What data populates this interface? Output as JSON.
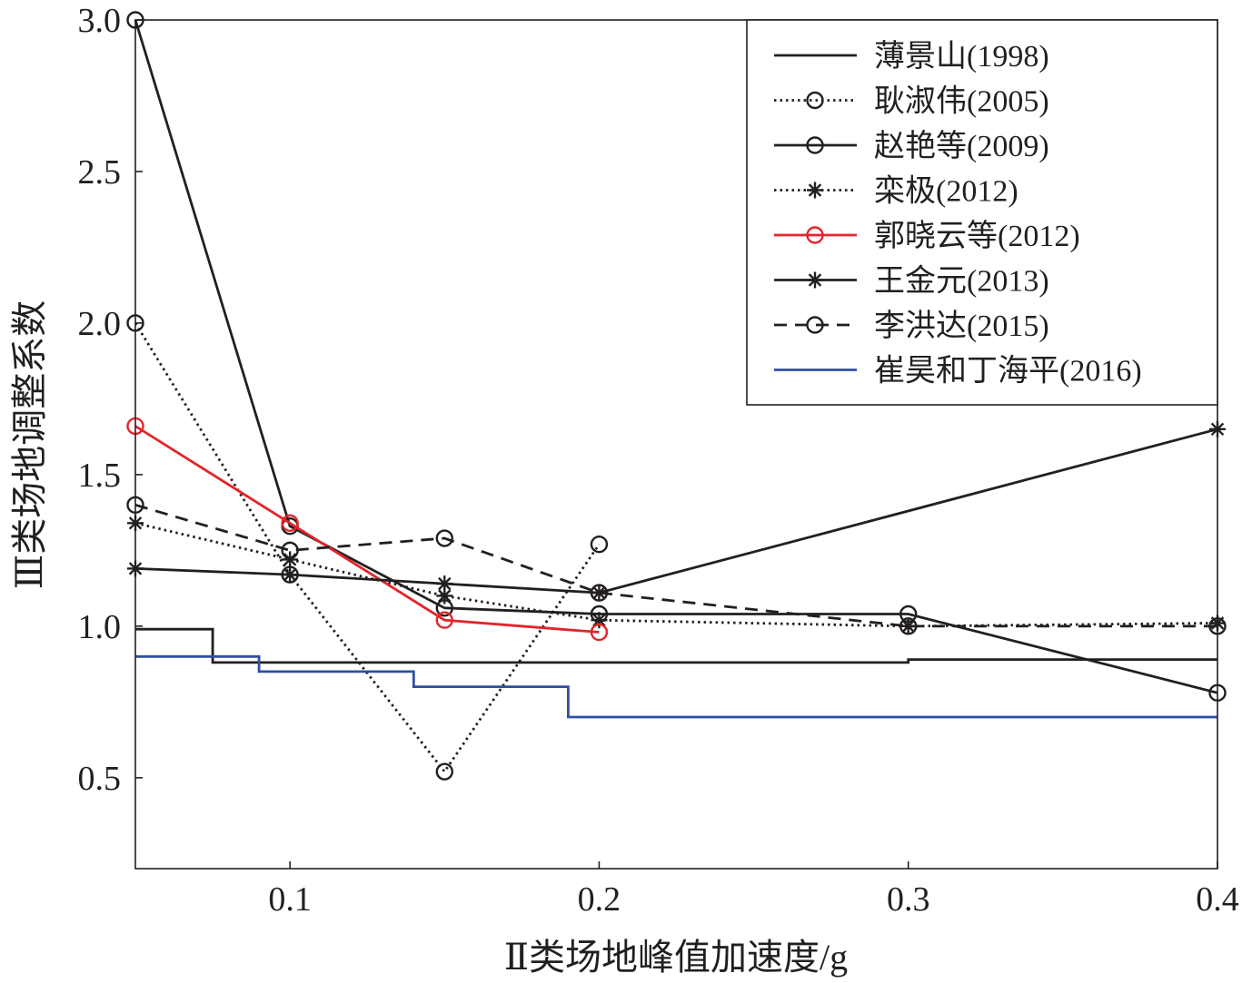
{
  "chart_data": {
    "type": "line",
    "xlabel": "Ⅱ类场地峰值加速度/g",
    "ylabel": "Ⅲ类场地调整系数",
    "xlim": [
      0.05,
      0.4
    ],
    "ylim": [
      0.2,
      3.0
    ],
    "xticks": [
      0.1,
      0.2,
      0.3,
      0.4
    ],
    "xtick_labels": [
      "0.1",
      "0.2",
      "0.3",
      "0.4"
    ],
    "yticks": [
      0.5,
      1.0,
      1.5,
      2.0,
      2.5,
      3.0
    ],
    "ytick_labels": [
      "0.5",
      "1.0",
      "1.5",
      "2.0",
      "2.5",
      "3.0"
    ],
    "grid": false,
    "legend_position": "top-right",
    "series": [
      {
        "name": "薄景山(1998)",
        "color": "#231f20",
        "dash": "solid",
        "marker": "none",
        "step": true,
        "x": [
          0.05,
          0.075,
          0.075,
          0.3,
          0.3,
          0.4
        ],
        "y": [
          0.99,
          0.99,
          0.88,
          0.88,
          0.89,
          0.89
        ]
      },
      {
        "name": "耿淑伟(2005)",
        "color": "#231f20",
        "dash": "dotted",
        "marker": "circle",
        "x": [
          0.05,
          0.1,
          0.15,
          0.2
        ],
        "y": [
          2.0,
          1.17,
          0.52,
          1.27
        ]
      },
      {
        "name": "赵艳等(2009)",
        "color": "#231f20",
        "dash": "solid",
        "marker": "circle",
        "x": [
          0.05,
          0.1,
          0.15,
          0.2,
          0.3,
          0.4
        ],
        "y": [
          3.0,
          1.33,
          1.06,
          1.04,
          1.04,
          0.78
        ]
      },
      {
        "name": "栾极(2012)",
        "color": "#231f20",
        "dash": "dotted",
        "marker": "star",
        "x": [
          0.05,
          0.1,
          0.15,
          0.2,
          0.3,
          0.4
        ],
        "y": [
          1.34,
          1.22,
          1.1,
          1.02,
          1.0,
          1.01
        ]
      },
      {
        "name": "郭晓云等(2012)",
        "color": "#e2252b",
        "dash": "solid",
        "marker": "circle",
        "x": [
          0.05,
          0.1,
          0.15,
          0.2
        ],
        "y": [
          1.66,
          1.34,
          1.02,
          0.98
        ]
      },
      {
        "name": "王金元(2013)",
        "color": "#231f20",
        "dash": "solid",
        "marker": "star",
        "x": [
          0.05,
          0.1,
          0.15,
          0.2,
          0.4
        ],
        "y": [
          1.19,
          1.17,
          1.14,
          1.11,
          1.65
        ]
      },
      {
        "name": "李洪达(2015)",
        "color": "#231f20",
        "dash": "dashed",
        "marker": "circle",
        "x": [
          0.05,
          0.1,
          0.15,
          0.2,
          0.3,
          0.4
        ],
        "y": [
          1.4,
          1.25,
          1.29,
          1.11,
          1.0,
          1.0
        ]
      },
      {
        "name": "崔昊和丁海平(2016)",
        "color": "#2f4f9f",
        "dash": "solid",
        "marker": "none",
        "step": true,
        "x": [
          0.05,
          0.09,
          0.09,
          0.14,
          0.14,
          0.19,
          0.19,
          0.4
        ],
        "y": [
          0.9,
          0.9,
          0.85,
          0.85,
          0.8,
          0.8,
          0.7,
          0.7
        ]
      }
    ]
  }
}
